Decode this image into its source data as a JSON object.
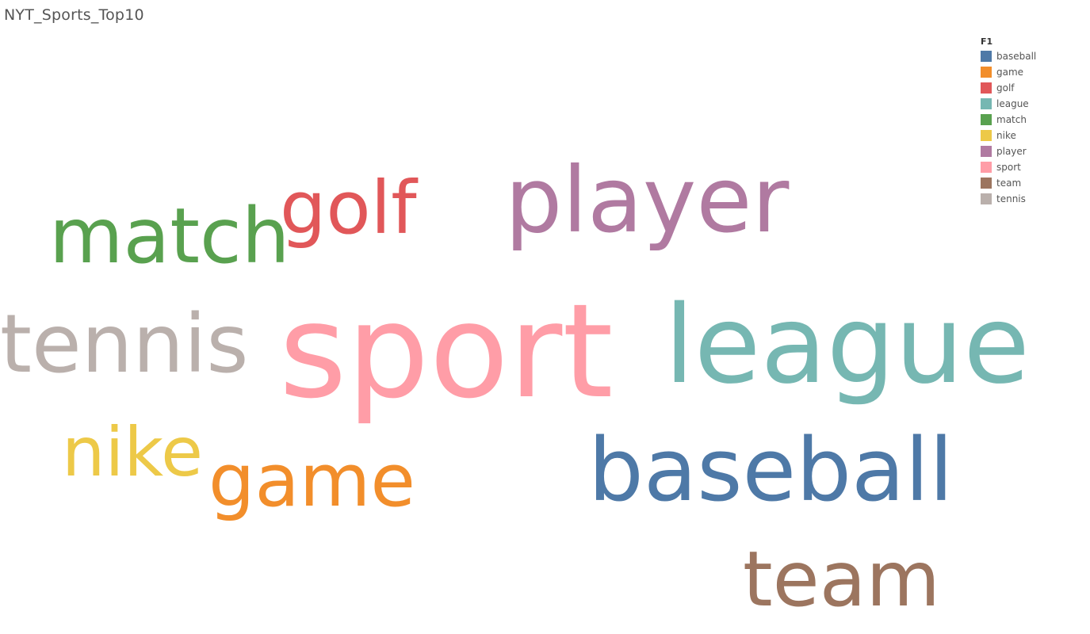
{
  "sheet_title": "NYT_Sports_Top10",
  "chart_data": {
    "type": "wordcloud",
    "legend": {
      "title": "F1",
      "placement": "top-right",
      "items": [
        {
          "label": "baseball",
          "color": "#4e79a7"
        },
        {
          "label": "game",
          "color": "#f28e2b"
        },
        {
          "label": "golf",
          "color": "#e15759"
        },
        {
          "label": "league",
          "color": "#76b7b2"
        },
        {
          "label": "match",
          "color": "#59a14f"
        },
        {
          "label": "nike",
          "color": "#edc948"
        },
        {
          "label": "player",
          "color": "#b07aa1"
        },
        {
          "label": "sport",
          "color": "#ff9da7"
        },
        {
          "label": "team",
          "color": "#9c755f"
        },
        {
          "label": "tennis",
          "color": "#bab0ac"
        }
      ]
    },
    "words": [
      {
        "text": "sport",
        "weight": 10
      },
      {
        "text": "league",
        "weight": 9
      },
      {
        "text": "player",
        "weight": 8
      },
      {
        "text": "baseball",
        "weight": 7
      },
      {
        "text": "tennis",
        "weight": 6
      },
      {
        "text": "team",
        "weight": 5
      },
      {
        "text": "match",
        "weight": 4
      },
      {
        "text": "golf",
        "weight": 3
      },
      {
        "text": "game",
        "weight": 2
      },
      {
        "text": "nike",
        "weight": 1
      }
    ]
  }
}
